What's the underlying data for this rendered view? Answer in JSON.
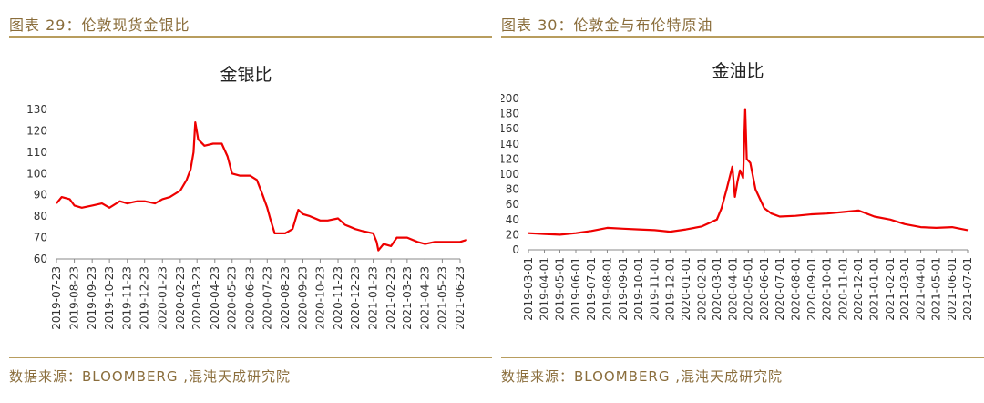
{
  "left": {
    "figure_title": "图表 29：伦敦现货金银比",
    "source": "数据来源：BLOOMBERG ,混沌天成研究院"
  },
  "right": {
    "figure_title": "图表 30：伦敦金与布伦特原油",
    "source": "数据来源：BLOOMBERG ,混沌天成研究院"
  },
  "chart_data": [
    {
      "type": "line",
      "title": "金银比",
      "xlabel": "",
      "ylabel": "",
      "ylim": [
        60,
        130
      ],
      "yticks": [
        60,
        70,
        80,
        90,
        100,
        110,
        120,
        130
      ],
      "xticks": [
        "2019-07-23",
        "2019-08-23",
        "2019-09-23",
        "2019-10-23",
        "2019-11-23",
        "2019-12-23",
        "2020-01-23",
        "2020-02-23",
        "2020-03-23",
        "2020-04-23",
        "2020-05-23",
        "2020-06-23",
        "2020-07-23",
        "2020-08-23",
        "2020-09-23",
        "2020-10-23",
        "2020-11-23",
        "2020-12-23",
        "2021-01-23",
        "2021-02-23",
        "2021-03-23",
        "2021-04-23",
        "2021-05-23",
        "2021-06-23"
      ],
      "grid": false,
      "series": [
        {
          "color": "#ee0000",
          "x": [
            "2019-07-23",
            "2019-08-01",
            "2019-08-15",
            "2019-08-23",
            "2019-09-05",
            "2019-09-23",
            "2019-10-10",
            "2019-10-23",
            "2019-11-10",
            "2019-11-23",
            "2019-12-10",
            "2019-12-23",
            "2020-01-10",
            "2020-01-23",
            "2020-02-05",
            "2020-02-23",
            "2020-03-05",
            "2020-03-12",
            "2020-03-17",
            "2020-03-20",
            "2020-03-25",
            "2020-04-05",
            "2020-04-20",
            "2020-05-05",
            "2020-05-15",
            "2020-05-23",
            "2020-06-05",
            "2020-06-23",
            "2020-07-05",
            "2020-07-15",
            "2020-07-23",
            "2020-07-28",
            "2020-08-05",
            "2020-08-23",
            "2020-09-05",
            "2020-09-15",
            "2020-09-23",
            "2020-10-05",
            "2020-10-23",
            "2020-11-05",
            "2020-11-23",
            "2020-12-05",
            "2020-12-23",
            "2021-01-05",
            "2021-01-23",
            "2021-01-29",
            "2021-02-01",
            "2021-02-10",
            "2021-02-23",
            "2021-03-05",
            "2021-03-23",
            "2021-04-10",
            "2021-04-23",
            "2021-05-10",
            "2021-05-23",
            "2021-06-10",
            "2021-06-23",
            "2021-07-05"
          ],
          "values": [
            86,
            89,
            88,
            85,
            84,
            85,
            86,
            84,
            87,
            86,
            87,
            87,
            86,
            88,
            89,
            92,
            97,
            102,
            110,
            124,
            116,
            113,
            114,
            114,
            108,
            100,
            99,
            99,
            97,
            90,
            84,
            79,
            72,
            72,
            74,
            83,
            81,
            80,
            78,
            78,
            79,
            76,
            74,
            73,
            72,
            68,
            64,
            67,
            66,
            70,
            70,
            68,
            67,
            68,
            68,
            68,
            68,
            69
          ]
        }
      ]
    },
    {
      "type": "line",
      "title": "金油比",
      "xlabel": "",
      "ylabel": "",
      "ylim": [
        0,
        200
      ],
      "yticks": [
        0,
        20,
        40,
        60,
        80,
        100,
        120,
        140,
        160,
        180,
        200
      ],
      "xticks": [
        "2019-03-01",
        "2019-04-01",
        "2019-05-01",
        "2019-06-01",
        "2019-07-01",
        "2019-08-01",
        "2019-09-01",
        "2019-10-01",
        "2019-11-01",
        "2019-12-01",
        "2020-01-01",
        "2020-02-01",
        "2020-03-01",
        "2020-04-01",
        "2020-05-01",
        "2020-06-01",
        "2020-07-01",
        "2020-08-01",
        "2020-09-01",
        "2020-10-01",
        "2020-11-01",
        "2020-12-01",
        "2021-01-01",
        "2021-02-01",
        "2021-03-01",
        "2021-04-01",
        "2021-05-01",
        "2021-06-01",
        "2021-07-01"
      ],
      "grid": false,
      "series": [
        {
          "color": "#ee0000",
          "x": [
            "2019-03-01",
            "2019-04-01",
            "2019-05-01",
            "2019-06-01",
            "2019-07-01",
            "2019-08-01",
            "2019-09-01",
            "2019-10-01",
            "2019-11-01",
            "2019-12-01",
            "2020-01-01",
            "2020-02-01",
            "2020-03-01",
            "2020-03-10",
            "2020-03-20",
            "2020-03-31",
            "2020-04-05",
            "2020-04-10",
            "2020-04-15",
            "2020-04-21",
            "2020-04-25",
            "2020-04-28",
            "2020-05-05",
            "2020-05-15",
            "2020-06-01",
            "2020-06-15",
            "2020-07-01",
            "2020-08-01",
            "2020-09-01",
            "2020-10-01",
            "2020-11-01",
            "2020-12-01",
            "2021-01-01",
            "2021-02-01",
            "2021-03-01",
            "2021-04-01",
            "2021-05-01",
            "2021-06-01",
            "2021-07-01"
          ],
          "values": [
            22,
            21,
            20,
            22,
            25,
            29,
            28,
            27,
            26,
            24,
            27,
            31,
            40,
            55,
            80,
            110,
            70,
            90,
            105,
            95,
            186,
            120,
            115,
            80,
            55,
            48,
            44,
            45,
            47,
            48,
            50,
            52,
            44,
            40,
            34,
            30,
            29,
            30,
            26
          ]
        }
      ]
    }
  ]
}
